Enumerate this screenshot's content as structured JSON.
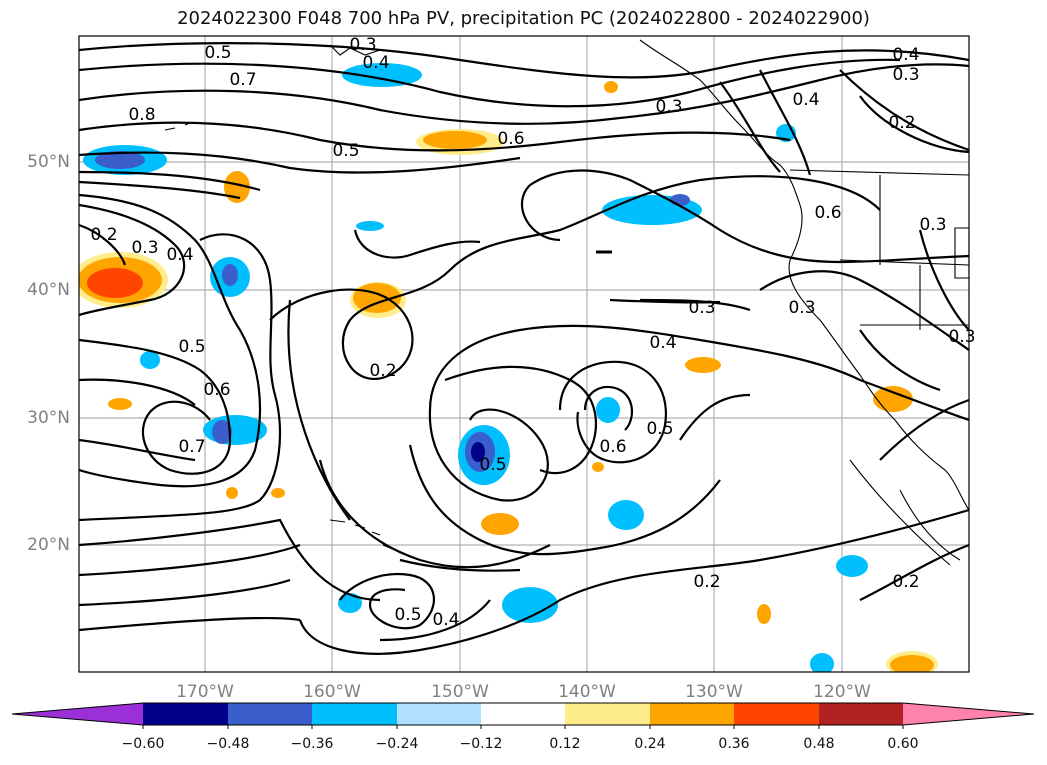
{
  "title": "2024022300 F048 700 hPa PV, precipitation PC (2024022800 - 2024022900)",
  "lat_labels": [
    "50°N",
    "40°N",
    "30°N",
    "20°N"
  ],
  "lon_labels": [
    "170°W",
    "160°W",
    "150°W",
    "140°W",
    "130°W",
    "120°W"
  ],
  "contour_labels": [
    "0.5",
    "0.7",
    "0.8",
    "0.5",
    "0.6",
    "0.3",
    "0.4",
    "0.4",
    "0.3",
    "0.2",
    "0.2",
    "0.3",
    "0.4",
    "0.5",
    "0.6",
    "0.7",
    "0.2",
    "0.3",
    "0.4",
    "0.5",
    "0.6",
    "0.5",
    "0.2",
    "0.2",
    "0.5",
    "0.4",
    "0.6",
    "0.3",
    "0.3",
    "0.4",
    "0.3",
    "0.3"
  ],
  "colorbar": {
    "ticks": [
      "−0.60",
      "−0.48",
      "−0.36",
      "−0.24",
      "−0.12",
      "0.12",
      "0.24",
      "0.36",
      "0.48",
      "0.60"
    ],
    "colors": [
      "#9b30d9",
      "#00008b",
      "#3a5fcd",
      "#00bfff",
      "#b0e2ff",
      "#ffffff",
      "#ffec8b",
      "#ffa500",
      "#ff4500",
      "#b22222",
      "#ff82ab"
    ]
  },
  "legend_colors": {
    "neg_light": "#b0e2ff",
    "neg_mid": "#00bfff",
    "neg_strong": "#3a5fcd",
    "neg_max": "#00008b",
    "pos_light": "#ffec8b",
    "pos_mid": "#ffa500",
    "pos_strong": "#ff4500"
  }
}
